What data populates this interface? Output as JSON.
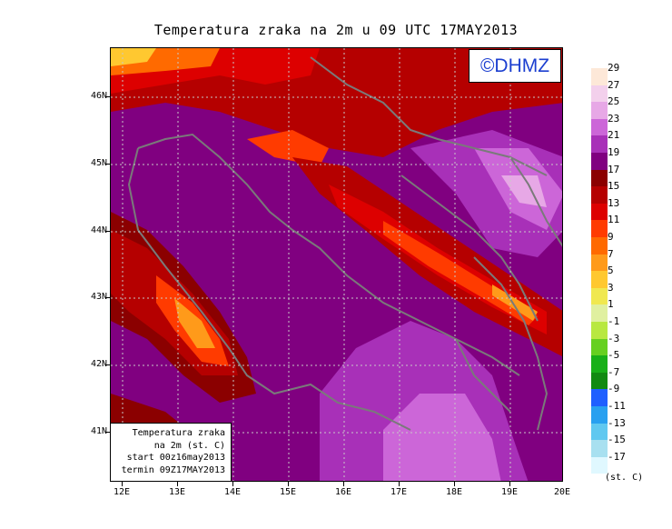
{
  "title": "Temperatura zraka na 2m u 09 UTC 17MAY2013",
  "logo": "©DHMZ",
  "info": {
    "line1": "Temperatura zraka",
    "line2": "na 2m (st. C)",
    "line3": "start 00z16may2013",
    "line4": "termin 09Z17MAY2013"
  },
  "axes": {
    "x_ticks": [
      "12E",
      "13E",
      "14E",
      "15E",
      "16E",
      "17E",
      "18E",
      "19E",
      "20E"
    ],
    "y_ticks": [
      "46N",
      "45N",
      "44N",
      "43N",
      "42N",
      "41N"
    ]
  },
  "legend": {
    "labels": [
      "29",
      "27",
      "25",
      "23",
      "21",
      "19",
      "17",
      "15",
      "13",
      "11",
      "9",
      "7",
      "5",
      "3",
      "1",
      "-1",
      "-3",
      "-5",
      "-7",
      "-9",
      "-11",
      "-13",
      "-15",
      "-17"
    ],
    "colors": [
      "#fde8d8",
      "#f3d0ec",
      "#e7a8e6",
      "#cc66d8",
      "#a830b8",
      "#800080",
      "#8b0000",
      "#b50000",
      "#dd0000",
      "#ff3b00",
      "#ff6a00",
      "#ff9a1a",
      "#ffc830",
      "#f0e850",
      "#e0f0a0",
      "#b8e840",
      "#66d020",
      "#18b018",
      "#118a11",
      "#1f5fff",
      "#28a0f0",
      "#60c8f0",
      "#a8e0f0",
      "#e0f8ff"
    ],
    "unit": "(st. C)"
  }
}
